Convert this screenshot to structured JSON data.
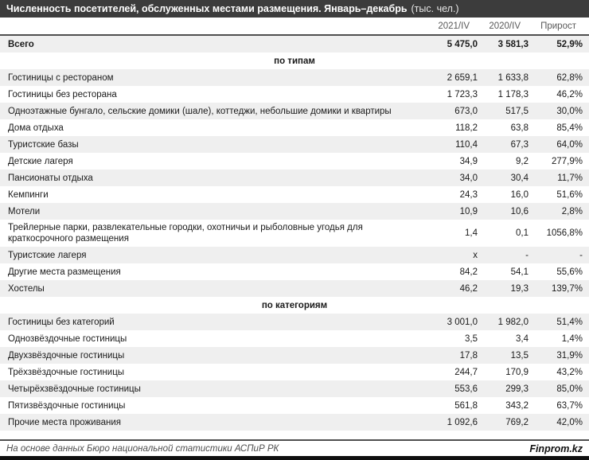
{
  "header": {
    "title": "Численность посетителей, обслуженных местами размещения. Январь–декабрь",
    "unit": "(тыс. чел.)"
  },
  "chart_data": {
    "type": "table",
    "title": "Численность посетителей, обслуженных местами размещения. Январь–декабрь (тыс. чел.)",
    "columns": [
      "2021/IV",
      "2020/IV",
      "Прирост"
    ],
    "rows": [
      {
        "label": "Всего",
        "v2021": "5 475,0",
        "v2020": "3 581,3",
        "growth": "52,9%",
        "style": "total"
      },
      {
        "label": "по типам",
        "style": "section"
      },
      {
        "label": "Гостиницы с рестораном",
        "v2021": "2 659,1",
        "v2020": "1 633,8",
        "growth": "62,8%"
      },
      {
        "label": "Гостиницы без ресторана",
        "v2021": "1 723,3",
        "v2020": "1 178,3",
        "growth": "46,2%"
      },
      {
        "label": "Одноэтажные бунгало, сельские домики (шале), коттеджи, небольшие домики и квартиры",
        "v2021": "673,0",
        "v2020": "517,5",
        "growth": "30,0%"
      },
      {
        "label": "Дома отдыха",
        "v2021": "118,2",
        "v2020": "63,8",
        "growth": "85,4%"
      },
      {
        "label": "Туристские базы",
        "v2021": "110,4",
        "v2020": "67,3",
        "growth": "64,0%"
      },
      {
        "label": "Детские лагеря",
        "v2021": "34,9",
        "v2020": "9,2",
        "growth": "277,9%"
      },
      {
        "label": "Пансионаты отдыха",
        "v2021": "34,0",
        "v2020": "30,4",
        "growth": "11,7%"
      },
      {
        "label": "Кемпинги",
        "v2021": "24,3",
        "v2020": "16,0",
        "growth": "51,6%"
      },
      {
        "label": "Мотели",
        "v2021": "10,9",
        "v2020": "10,6",
        "growth": "2,8%"
      },
      {
        "label": "Трейлерные парки, развлекательные городки, охотничьи и рыболовные угодья для краткосрочного размещения",
        "v2021": "1,4",
        "v2020": "0,1",
        "growth": "1056,8%"
      },
      {
        "label": "Туристские лагеря",
        "v2021": "x",
        "v2020": "-",
        "growth": "-"
      },
      {
        "label": "Другие места размещения",
        "v2021": "84,2",
        "v2020": "54,1",
        "growth": "55,6%"
      },
      {
        "label": "Хостелы",
        "v2021": "46,2",
        "v2020": "19,3",
        "growth": "139,7%"
      },
      {
        "label": "по категориям",
        "style": "section"
      },
      {
        "label": "Гостиницы без категорий",
        "v2021": "3 001,0",
        "v2020": "1 982,0",
        "growth": "51,4%"
      },
      {
        "label": "Однозвёздочные гостиницы",
        "v2021": "3,5",
        "v2020": "3,4",
        "growth": "1,4%"
      },
      {
        "label": "Двухзвёздочные гостиницы",
        "v2021": "17,8",
        "v2020": "13,5",
        "growth": "31,9%"
      },
      {
        "label": "Трёхзвёздочные гостиницы",
        "v2021": "244,7",
        "v2020": "170,9",
        "growth": "43,2%"
      },
      {
        "label": "Четырёхзвёздочные гостиницы",
        "v2021": "553,6",
        "v2020": "299,3",
        "growth": "85,0%"
      },
      {
        "label": "Пятизвёздочные гостиницы",
        "v2021": "561,8",
        "v2020": "343,2",
        "growth": "63,7%"
      },
      {
        "label": "Прочие места проживания",
        "v2021": "1 092,6",
        "v2020": "769,2",
        "growth": "42,0%"
      }
    ]
  },
  "footer": {
    "source": "На основе данных Бюро национальной статистики АСПиР РК",
    "brand": "Finprom.kz"
  },
  "colors": {
    "title_bar_bg": "#3c3c3c",
    "title_text": "#ffffff",
    "stripe": "#efefef",
    "rule": "#4f4f4f",
    "header_text": "#595959",
    "body_text": "#1a1a1a",
    "bottom_bar": "#0f0f0f"
  }
}
